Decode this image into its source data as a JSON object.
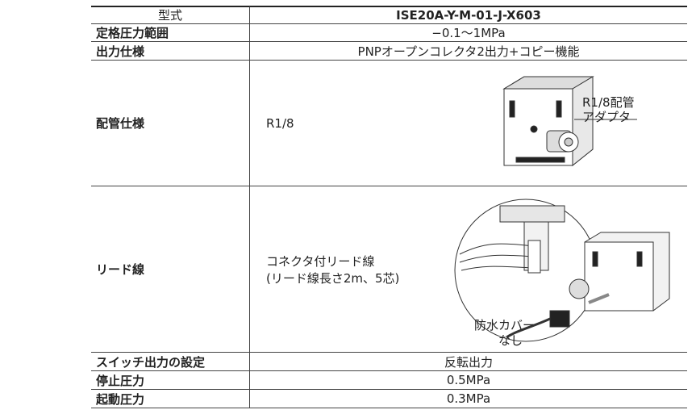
{
  "table": {
    "header": [
      "型式",
      "ISE20A-Y-M-01-J-X603"
    ],
    "rows": [
      [
        "定格圧力範囲",
        "−0.1〜1MPa"
      ],
      [
        "出力仕様",
        "PNPオープンコレクタ2出力+コピー機能"
      ],
      [
        "配管仕様",
        "R1/8"
      ],
      [
        "リード線",
        [
          "コネクタ付リード線",
          "(リード線長さ2m、5芯)"
        ]
      ],
      [
        "スイッチ出力の設定",
        "反転出力"
      ],
      [
        "停止圧力",
        "0.5MPa"
      ],
      [
        "起動圧力",
        "0.3MPa"
      ]
    ]
  },
  "figures": {
    "piping": {
      "labels": [
        "R1/8配管",
        "アダプタ"
      ]
    },
    "lead": {
      "labels": [
        "防水カバー",
        "なし"
      ]
    }
  }
}
